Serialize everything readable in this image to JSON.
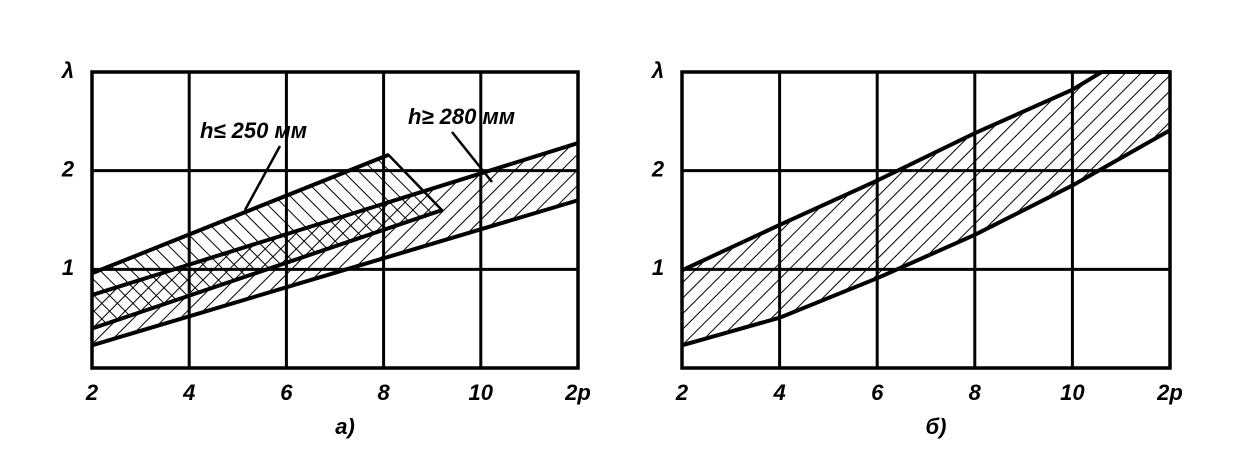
{
  "chart_data": [
    {
      "type": "band",
      "caption": "а)",
      "xlim": [
        2,
        12
      ],
      "xticks": [
        2,
        4,
        6,
        8,
        10,
        {
          "value": 12,
          "label": "2p"
        }
      ],
      "ylim": [
        0,
        3
      ],
      "yticks": [
        1,
        2,
        {
          "value": 3,
          "label": "λ"
        }
      ],
      "grid": true,
      "color": "#000000",
      "series": [
        {
          "name": "h≤ 250 мм",
          "hatch": "backslash",
          "x_upper": [
            2,
            8.1
          ],
          "upper": [
            0.96,
            2.16
          ],
          "x_lower": [
            2,
            9.2
          ],
          "lower": [
            0.4,
            1.6
          ]
        },
        {
          "name": "h≥ 280 мм",
          "hatch": "slash",
          "x_upper": [
            2,
            12
          ],
          "upper": [
            0.74,
            2.28
          ],
          "x_lower": [
            2,
            12
          ],
          "lower": [
            0.23,
            1.7
          ]
        }
      ]
    },
    {
      "type": "band",
      "caption": "б)",
      "xlim": [
        2,
        12
      ],
      "xticks": [
        2,
        4,
        6,
        8,
        10,
        {
          "value": 12,
          "label": "2p"
        }
      ],
      "ylim": [
        0,
        3
      ],
      "yticks": [
        1,
        2,
        {
          "value": 3,
          "label": "λ"
        }
      ],
      "grid": true,
      "color": "#000000",
      "series": [
        {
          "hatch": "slash",
          "x_upper": [
            2,
            4,
            6,
            8,
            10,
            10.6,
            12
          ],
          "upper": [
            0.99,
            1.45,
            1.9,
            2.38,
            2.82,
            3,
            3
          ],
          "x_lower": [
            2,
            4,
            6,
            8,
            10,
            12
          ],
          "lower": [
            0.23,
            0.51,
            0.91,
            1.35,
            1.85,
            2.41
          ]
        }
      ]
    }
  ]
}
